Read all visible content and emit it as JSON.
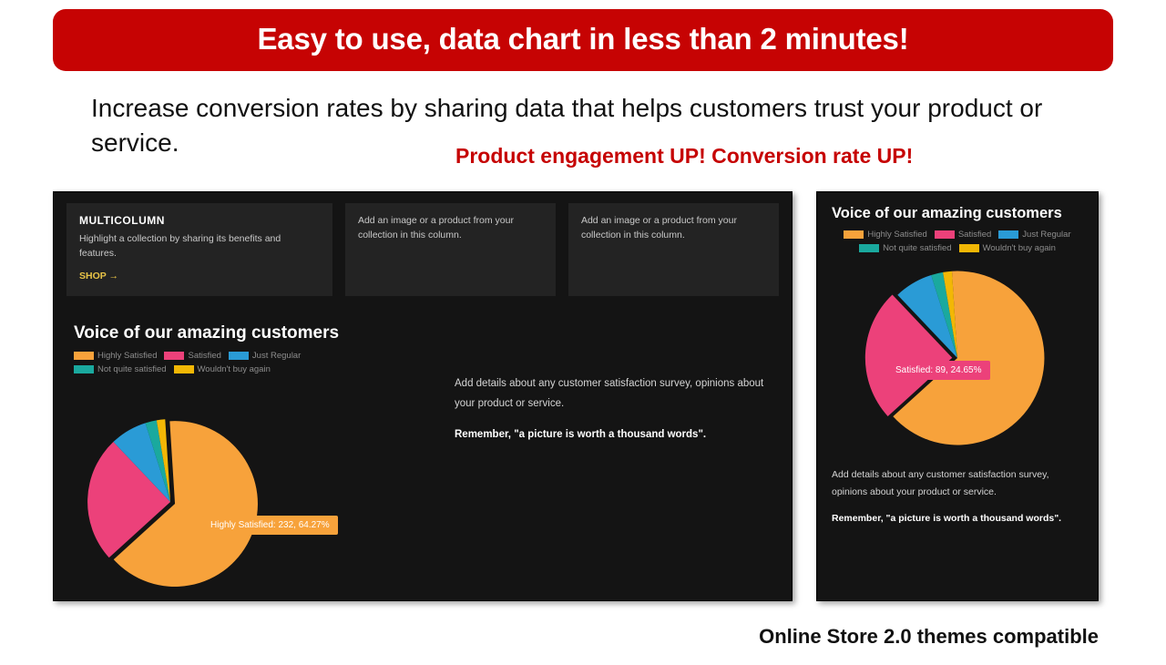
{
  "banner": {
    "text": "Easy to use, data chart in less than 2 minutes!",
    "bg": "#c60303",
    "fg": "#ffffff"
  },
  "subhead": "Increase conversion rates by sharing data that helps customers trust your product or service.",
  "callout": "Product engagement UP! Conversion rate UP!",
  "footer": "Online Store 2.0 themes compatible",
  "chart": {
    "type": "pie",
    "title": "Voice of our amazing customers",
    "background_color": "#141414",
    "text_color": "#d9d9d9",
    "title_color": "#ffffff",
    "title_fontsize": 19,
    "series": [
      {
        "label": "Highly Satisfied",
        "value": 232,
        "pct": 64.27,
        "color": "#f7a23b"
      },
      {
        "label": "Satisfied",
        "value": 89,
        "pct": 24.65,
        "color": "#ec417a"
      },
      {
        "label": "Just Regular",
        "value": 26,
        "pct": 7.2,
        "color": "#2a9bd6"
      },
      {
        "label": "Not quite satisfied",
        "value": 8,
        "pct": 2.22,
        "color": "#1aa99e"
      },
      {
        "label": "Wouldn't buy again",
        "value": 6,
        "pct": 1.66,
        "color": "#f2b705"
      }
    ],
    "side_text": "Add details about any customer satisfaction survey, opinions about your product or service.",
    "remember": "Remember, \"a picture is worth a thousand words\"."
  },
  "desktop": {
    "tooltip": {
      "series_idx": 0,
      "text": "Highly Satisfied: 232, 64.27%"
    },
    "multicolumn": {
      "title": "MULTICOLUMN",
      "body": "Highlight a collection by sharing its benefits and features.",
      "shop_label": "SHOP  →",
      "col_text": "Add an image or a product from your collection in this column."
    }
  },
  "mobile": {
    "tooltip": {
      "series_idx": 1,
      "text": "Satisfied: 89, 24.65%"
    }
  }
}
